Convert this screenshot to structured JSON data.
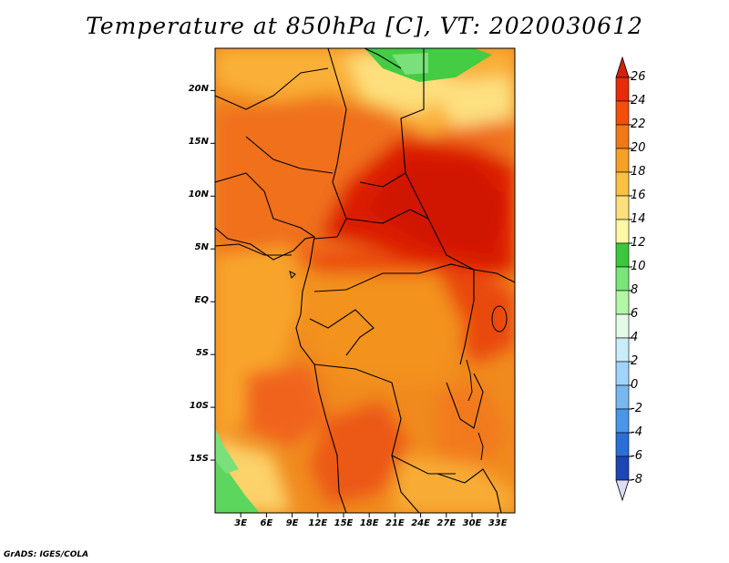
{
  "title": "Temperature at 850hPa [C], VT: 2020030612",
  "credit": "GrADS: IGES/COLA",
  "map": {
    "region": "Central Africa",
    "lon_range": [
      0,
      35
    ],
    "lat_range": [
      -20,
      24
    ],
    "lat_labels": [
      "20N",
      "15N",
      "10N",
      "5N",
      "EQ",
      "5S",
      "10S",
      "15S"
    ],
    "lat_values": [
      20,
      15,
      10,
      5,
      0,
      -5,
      -10,
      -15
    ],
    "lon_labels": [
      "3E",
      "6E",
      "9E",
      "12E",
      "15E",
      "18E",
      "21E",
      "24E",
      "27E",
      "30E",
      "33E"
    ],
    "lon_values": [
      3,
      6,
      9,
      12,
      15,
      18,
      21,
      24,
      27,
      30,
      33
    ]
  },
  "colorbar": {
    "labels": [
      "26",
      "24",
      "22",
      "20",
      "18",
      "16",
      "14",
      "12",
      "10",
      "8",
      "6",
      "4",
      "2",
      "0",
      "-2",
      "-4",
      "-6",
      "-8"
    ],
    "colors": [
      "#e62c08",
      "#f0500a",
      "#f07818",
      "#f5a028",
      "#fac044",
      "#fde07c",
      "#fcf8a6",
      "#3cc83c",
      "#78e678",
      "#b4f6a8",
      "#e4fae8",
      "#c8ecfa",
      "#a0d4f8",
      "#78b8f0",
      "#4a96e8",
      "#2a6ed8",
      "#1c46b4",
      "#0c2482",
      "#000050"
    ],
    "over_color": "#d2200a",
    "under_color": "#dcdcf8"
  }
}
